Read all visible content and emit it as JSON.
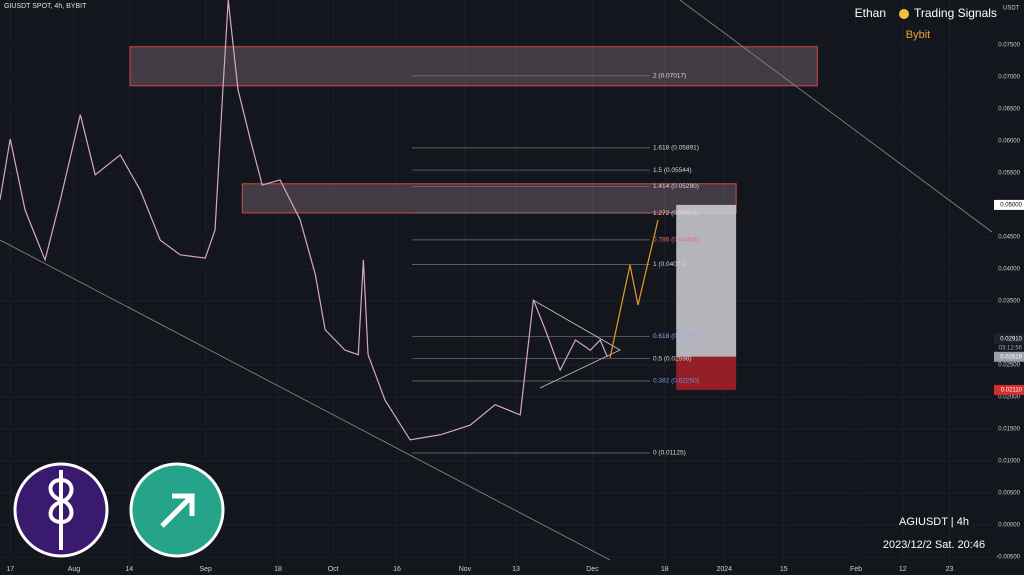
{
  "header": {
    "symbol": "GIUSDT SPOT, 4h, BYBIT",
    "author": "Ethan",
    "brand": "Trading Signals",
    "exchange": "Bybit",
    "watermark": "AGIUSDT | 4h",
    "timestamp": "2023/12/2 Sat. 20:46",
    "currency": "USDT"
  },
  "chart_data": {
    "type": "line",
    "color": "#d9a6c4",
    "x": [
      195.6,
      198,
      201.5,
      206.2,
      209.8,
      214.5,
      218,
      223.9,
      228.6,
      233.3,
      238,
      243.9,
      246.2,
      247.9,
      249.3,
      251.6,
      254.5,
      257.3,
      261.5,
      266.2,
      269.8,
      272.1,
      276.8,
      279.9,
      281.1,
      282.2,
      286.2,
      292.1,
      299.2,
      306.2,
      312.1,
      318,
      321.1,
      323.9,
      327.4,
      331,
      334.5,
      336.8,
      338.5
    ],
    "values": [
      0.0508,
      0.0603,
      0.0492,
      0.0414,
      0.0508,
      0.0641,
      0.0547,
      0.0578,
      0.0523,
      0.0445,
      0.0422,
      0.0417,
      0.0461,
      0.0664,
      0.082,
      0.068,
      0.0602,
      0.0531,
      0.0539,
      0.0477,
      0.0391,
      0.0305,
      0.0273,
      0.0266,
      0.0414,
      0.0266,
      0.0195,
      0.0133,
      0.0141,
      0.0156,
      0.0188,
      0.0172,
      0.0352,
      0.0305,
      0.0242,
      0.0289,
      0.0273,
      0.0289,
      0.02628
    ],
    "xlim": [
      195.6,
      429
    ],
    "ylim": [
      -0.0078,
      0.082
    ],
    "xticks": [
      {
        "value": 198,
        "label": "17"
      },
      {
        "value": 213,
        "label": "Aug"
      },
      {
        "value": 226,
        "label": "14"
      },
      {
        "value": 244,
        "label": "Sep"
      },
      {
        "value": 261,
        "label": "18"
      },
      {
        "value": 274,
        "label": "Oct"
      },
      {
        "value": 289,
        "label": "16"
      },
      {
        "value": 305,
        "label": "Nov"
      },
      {
        "value": 317,
        "label": "13"
      },
      {
        "value": 335,
        "label": "Dec"
      },
      {
        "value": 352,
        "label": "18"
      },
      {
        "value": 366,
        "label": "2024"
      },
      {
        "value": 380,
        "label": "15"
      },
      {
        "value": 397,
        "label": "Feb"
      },
      {
        "value": 408,
        "label": "12"
      },
      {
        "value": 419,
        "label": "23"
      }
    ],
    "yticks": [
      {
        "value": 0.075,
        "label": "0.07500"
      },
      {
        "value": 0.07,
        "label": "0.07000"
      },
      {
        "value": 0.065,
        "label": "0.06500"
      },
      {
        "value": 0.06,
        "label": "0.06000"
      },
      {
        "value": 0.055,
        "label": "0.05500"
      },
      {
        "value": 0.045,
        "label": "0.04500"
      },
      {
        "value": 0.04,
        "label": "0.04000"
      },
      {
        "value": 0.035,
        "label": "0.03500"
      },
      {
        "value": 0.025,
        "label": "0.02500"
      },
      {
        "value": 0.02,
        "label": "0.02000"
      },
      {
        "value": 0.015,
        "label": "0.01500"
      },
      {
        "value": 0.01,
        "label": "0.01000"
      },
      {
        "value": 0.005,
        "label": "0.00500"
      },
      {
        "value": 0,
        "label": "0.00000"
      },
      {
        "value": -0.005,
        "label": "-0.00500"
      }
    ],
    "fib_levels": [
      {
        "value": 0.07017,
        "label": "2 (0.07017)",
        "color": "#d8d8d8"
      },
      {
        "value": 0.05891,
        "label": "1.618 (0.05891)",
        "color": "#d8d8d8"
      },
      {
        "value": 0.05544,
        "label": "1.5 (0.05544)",
        "color": "#d8d8d8"
      },
      {
        "value": 0.0529,
        "label": "1.414 (0.05290)",
        "color": "#d8d8d8"
      },
      {
        "value": 0.04872,
        "label": "1.272 (0.04872)",
        "color": "#d8d8d8"
      },
      {
        "value": 0.04454,
        "label": "0.786 (0.04454)",
        "color": "#e07070"
      },
      {
        "value": 0.04071,
        "label": "1 (0.04071)",
        "color": "#d8d8d8"
      },
      {
        "value": 0.02946,
        "label": "0.618 (0.02946)",
        "color": "#8fb3e8"
      },
      {
        "value": 0.02598,
        "label": "0.5 (0.02598)",
        "color": "#d8d8d8"
      },
      {
        "value": 0.0225,
        "label": "0.382 (0.02250)",
        "color": "#6f9ae0"
      },
      {
        "value": 0.01125,
        "label": "0 (0.01125)",
        "color": "#d8d8d8"
      }
    ],
    "zones": [
      {
        "x": [
          226.2,
          387.9
        ],
        "y": [
          0.0686,
          0.0747
        ]
      },
      {
        "x": [
          252.6,
          368.8
        ],
        "y": [
          0.04875,
          0.0533
        ]
      }
    ],
    "position": {
      "x": [
        354.7,
        368.8
      ],
      "target": 0.05,
      "entry": 0.02628,
      "stop": 0.0211
    },
    "price_tags": [
      {
        "value": 0.05,
        "label": "0.05000",
        "color": "#ffffff",
        "text": "#000000"
      },
      {
        "value": 0.0291,
        "label": "0.02910",
        "color": "#1e222d",
        "text": "#ffffff"
      },
      {
        "value": 0.02628,
        "label": "0.02628",
        "color": "#9aa0a8",
        "text": "#ffffff"
      },
      {
        "value": 0.0211,
        "label": "0.02110",
        "color": "#d32f2f",
        "text": "#ffffff"
      }
    ],
    "countdown": "03:12:56"
  }
}
